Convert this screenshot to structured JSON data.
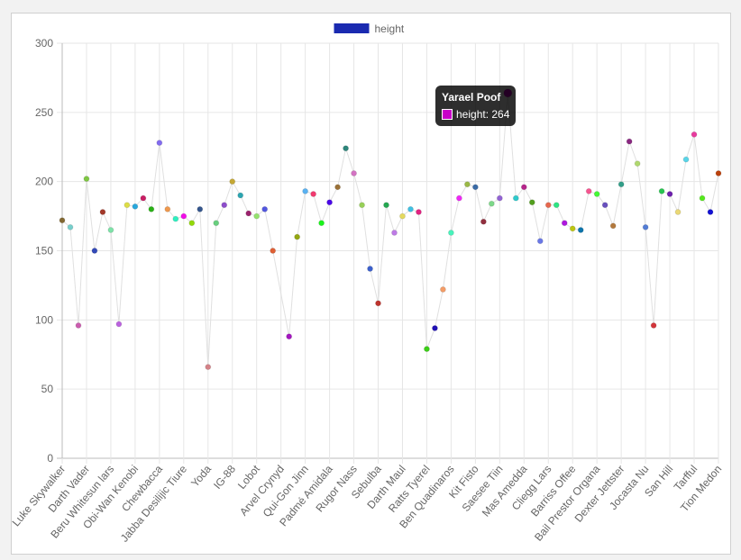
{
  "chart_data": {
    "type": "line",
    "legend": {
      "label": "height",
      "color": "#1a2ab0",
      "placement": "top"
    },
    "series": [
      {
        "name": "height",
        "values": [
          172,
          167,
          96,
          202,
          150,
          178,
          165,
          97,
          183,
          182,
          188,
          180,
          228,
          180,
          173,
          175,
          170,
          180,
          66,
          170,
          183,
          200,
          190,
          177,
          175,
          180,
          150,
          null,
          88,
          160,
          193,
          191,
          170,
          185,
          196,
          224,
          206,
          183,
          137,
          112,
          183,
          163,
          175,
          180,
          178,
          79,
          94,
          122,
          163,
          188,
          198,
          196,
          171,
          184,
          188,
          264,
          188,
          196,
          185,
          157,
          183,
          183,
          170,
          166,
          165,
          193,
          191,
          183,
          168,
          198,
          229,
          213,
          167,
          96,
          193,
          191,
          178,
          216,
          234,
          188,
          178,
          206
        ]
      }
    ],
    "categories": [
      "Luke Skywalker",
      "",
      "",
      "Darth Vader",
      "",
      "",
      "Beru Whitesun lars",
      "",
      "",
      "Obi-Wan Kenobi",
      "",
      "",
      "Chewbacca",
      "",
      "",
      "Jabba Desilijic Tiure",
      "",
      "",
      "Yoda",
      "",
      "",
      "IG-88",
      "",
      "",
      "Lobot",
      "",
      "",
      "Arvel Crynyd",
      "",
      "",
      "Qui-Gon Jinn",
      "",
      "",
      "Padmé Amidala",
      "",
      "",
      "Rugor Nass",
      "",
      "",
      "Sebulba",
      "",
      "",
      "Darth Maul",
      "",
      "",
      "Ratts Tyerel",
      "",
      "",
      "Ben Quadinaros",
      "",
      "",
      "Kit Fisto",
      "",
      "",
      "Saesee Tiin",
      "",
      "",
      "Mas Amedda",
      "",
      "",
      "Cliegg Lars",
      "",
      "",
      "Barriss Offee",
      "",
      "",
      "Bail Prestor Organa",
      "",
      "",
      "Dexter Jettster",
      "",
      "",
      "Jocasta Nu",
      "",
      "",
      "San Hill",
      "",
      "",
      "Tarfful",
      "",
      "",
      "Tion Medon"
    ],
    "ylim": [
      0,
      300
    ],
    "yticks": [
      0,
      50,
      100,
      150,
      200,
      250,
      300
    ],
    "grid": true,
    "line_color": "#e0e0e0"
  },
  "tooltip": {
    "title": "Yarael Poof",
    "label": "height: 264",
    "index": 55,
    "color": "#c800c8"
  }
}
